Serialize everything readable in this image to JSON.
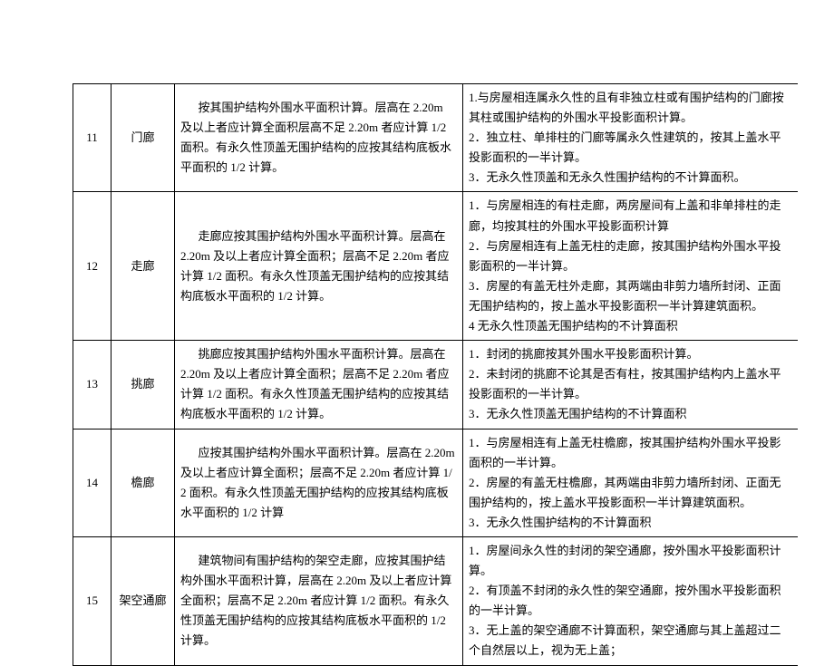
{
  "table": {
    "rows": [
      {
        "num": "11",
        "name": "门廊",
        "desc": "按其围护结构外围水平面积计算。层高在 2.20m 及以上者应计算全面积层高不足 2.20m 者应计算 1/2 面积。有永久性顶盖无围护结构的应按其结构底板水平面积的 1/2 计算。",
        "notes": "1.与房屋相连属永久性的且有非独立柱或有围护结构的门廊按其柱或围护结构的外围水平投影面积计算。\n2．独立柱、单排柱的门廊等属永久性建筑的，按其上盖水平投影面积的一半计算。\n3．无永久性顶盖和无永久性围护结构的不计算面积。"
      },
      {
        "num": "12",
        "name": "走廊",
        "desc": "走廊应按其围护结构外围水平面积计算。层高在 2.20m 及以上者应计算全面积；层高不足 2.20m 者应计算 1/2 面积。有永久性顶盖无围护结构的应按其结构底板水平面积的 1/2 计算。",
        "notes": "1．与房屋相连的有柱走廊，两房屋间有上盖和非单排柱的走廊，均按其柱的外围水平投影面积计算\n2．与房屋相连有上盖无柱的走廊，按其围护结构外围水平投影面积的一半计算。\n3．房屋的有盖无柱外走廊，其两端由非剪力墙所封闭、正面无围护结构的，按上盖水平投影面积一半计算建筑面积。\n4 无永久性顶盖无围护结构的不计算面积"
      },
      {
        "num": "13",
        "name": "挑廊",
        "desc": "挑廊应按其围护结构外围水平面积计算。层高在 2.20m 及以上者应计算全面积；层高不足 2.20m 者应计算 1/2 面积。有永久性顶盖无围护结构的应按其结构底板水平面积的 1/2 计算。",
        "notes": "1．封闭的挑廊按其外围水平投影面积计算。\n2．未封闭的挑廊不论其是否有柱，按其围护结构内上盖水平投影面积的一半计算。\n3．无永久性顶盖无围护结构的不计算面积"
      },
      {
        "num": "14",
        "name": "檐廊",
        "desc": "应按其围护结构外围水平面积计算。层高在 2.20m 及以上者应计算全面积；层高不足 2.20m 者应计算 1/2 面积。有永久性顶盖无围护结构的应按其结构底板水平面积的 1/2 计算",
        "notes": "1．与房屋相连有上盖无柱檐廊，按其围护结构外围水平投影面积的一半计算。\n2．房屋的有盖无柱檐廊，其两端由非剪力墙所封闭、正面无围护结构的，按上盖水平投影面积一半计算建筑面积。\n3．无永久性围护结构的不计算面积"
      },
      {
        "num": "15",
        "name": "架空通廊",
        "desc": "建筑物间有围护结构的架空走廊，应按其围护结构外围水平面积计算，层高在 2.20m 及以上者应计算全面积；层高不足 2.20m 者应计算 1/2 面积。有永久性顶盖无围护结构的应按其结构底板水平面积的 1/2 计算。",
        "notes": "1．房屋间永久性的封闭的架空通廊，按外围水平投影面积计算。\n2．有顶盖不封闭的永久性的架空通廊，按外围水平投影面积的一半计算。\n3．无上盖的架空通廊不计算面积，架空通廊与其上盖超过二个自然层以上，视为无上盖；"
      }
    ]
  }
}
